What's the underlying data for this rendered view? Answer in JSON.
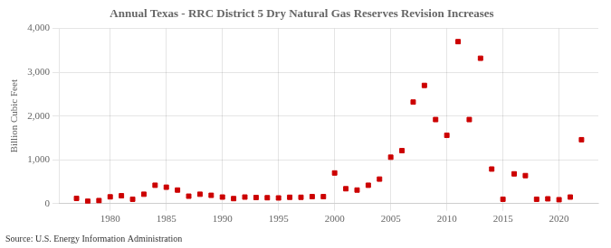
{
  "chart_data": {
    "type": "scatter",
    "title": "Annual Texas - RRC District 5 Dry Natural Gas Reserves Revision Increases",
    "ylabel": "Billion Cubic Feet",
    "source": "Source: U.S. Energy Information Administration",
    "color": "#cc0000",
    "marker": "square",
    "grid": true,
    "xlim": [
      1975.5,
      2023.5
    ],
    "ylim": [
      0,
      4000
    ],
    "xticks": [
      1980,
      1985,
      1990,
      1995,
      2000,
      2005,
      2010,
      2015,
      2020
    ],
    "yticks": [
      0,
      {
        "value": 1000,
        "label": "1,000"
      },
      {
        "value": 2000,
        "label": "2,000"
      },
      {
        "value": 3000,
        "label": "3,000"
      },
      {
        "value": 4000,
        "label": "4,000"
      }
    ],
    "x": [
      1977,
      1978,
      1979,
      1980,
      1981,
      1982,
      1983,
      1984,
      1985,
      1986,
      1987,
      1988,
      1989,
      1990,
      1991,
      1992,
      1993,
      1994,
      1995,
      1996,
      1997,
      1998,
      1999,
      2000,
      2001,
      2002,
      2003,
      2004,
      2005,
      2006,
      2007,
      2008,
      2009,
      2010,
      2011,
      2012,
      2013,
      2014,
      2015,
      2016,
      2017,
      2018,
      2019,
      2020,
      2021,
      2022
    ],
    "values": [
      120,
      55,
      70,
      155,
      180,
      100,
      215,
      420,
      375,
      310,
      170,
      215,
      190,
      150,
      115,
      150,
      140,
      135,
      130,
      145,
      145,
      160,
      160,
      700,
      340,
      310,
      420,
      560,
      1060,
      1210,
      2320,
      2700,
      1920,
      1560,
      3700,
      1920,
      3320,
      790,
      100,
      680,
      640,
      100,
      110,
      90,
      150,
      1460
    ]
  }
}
